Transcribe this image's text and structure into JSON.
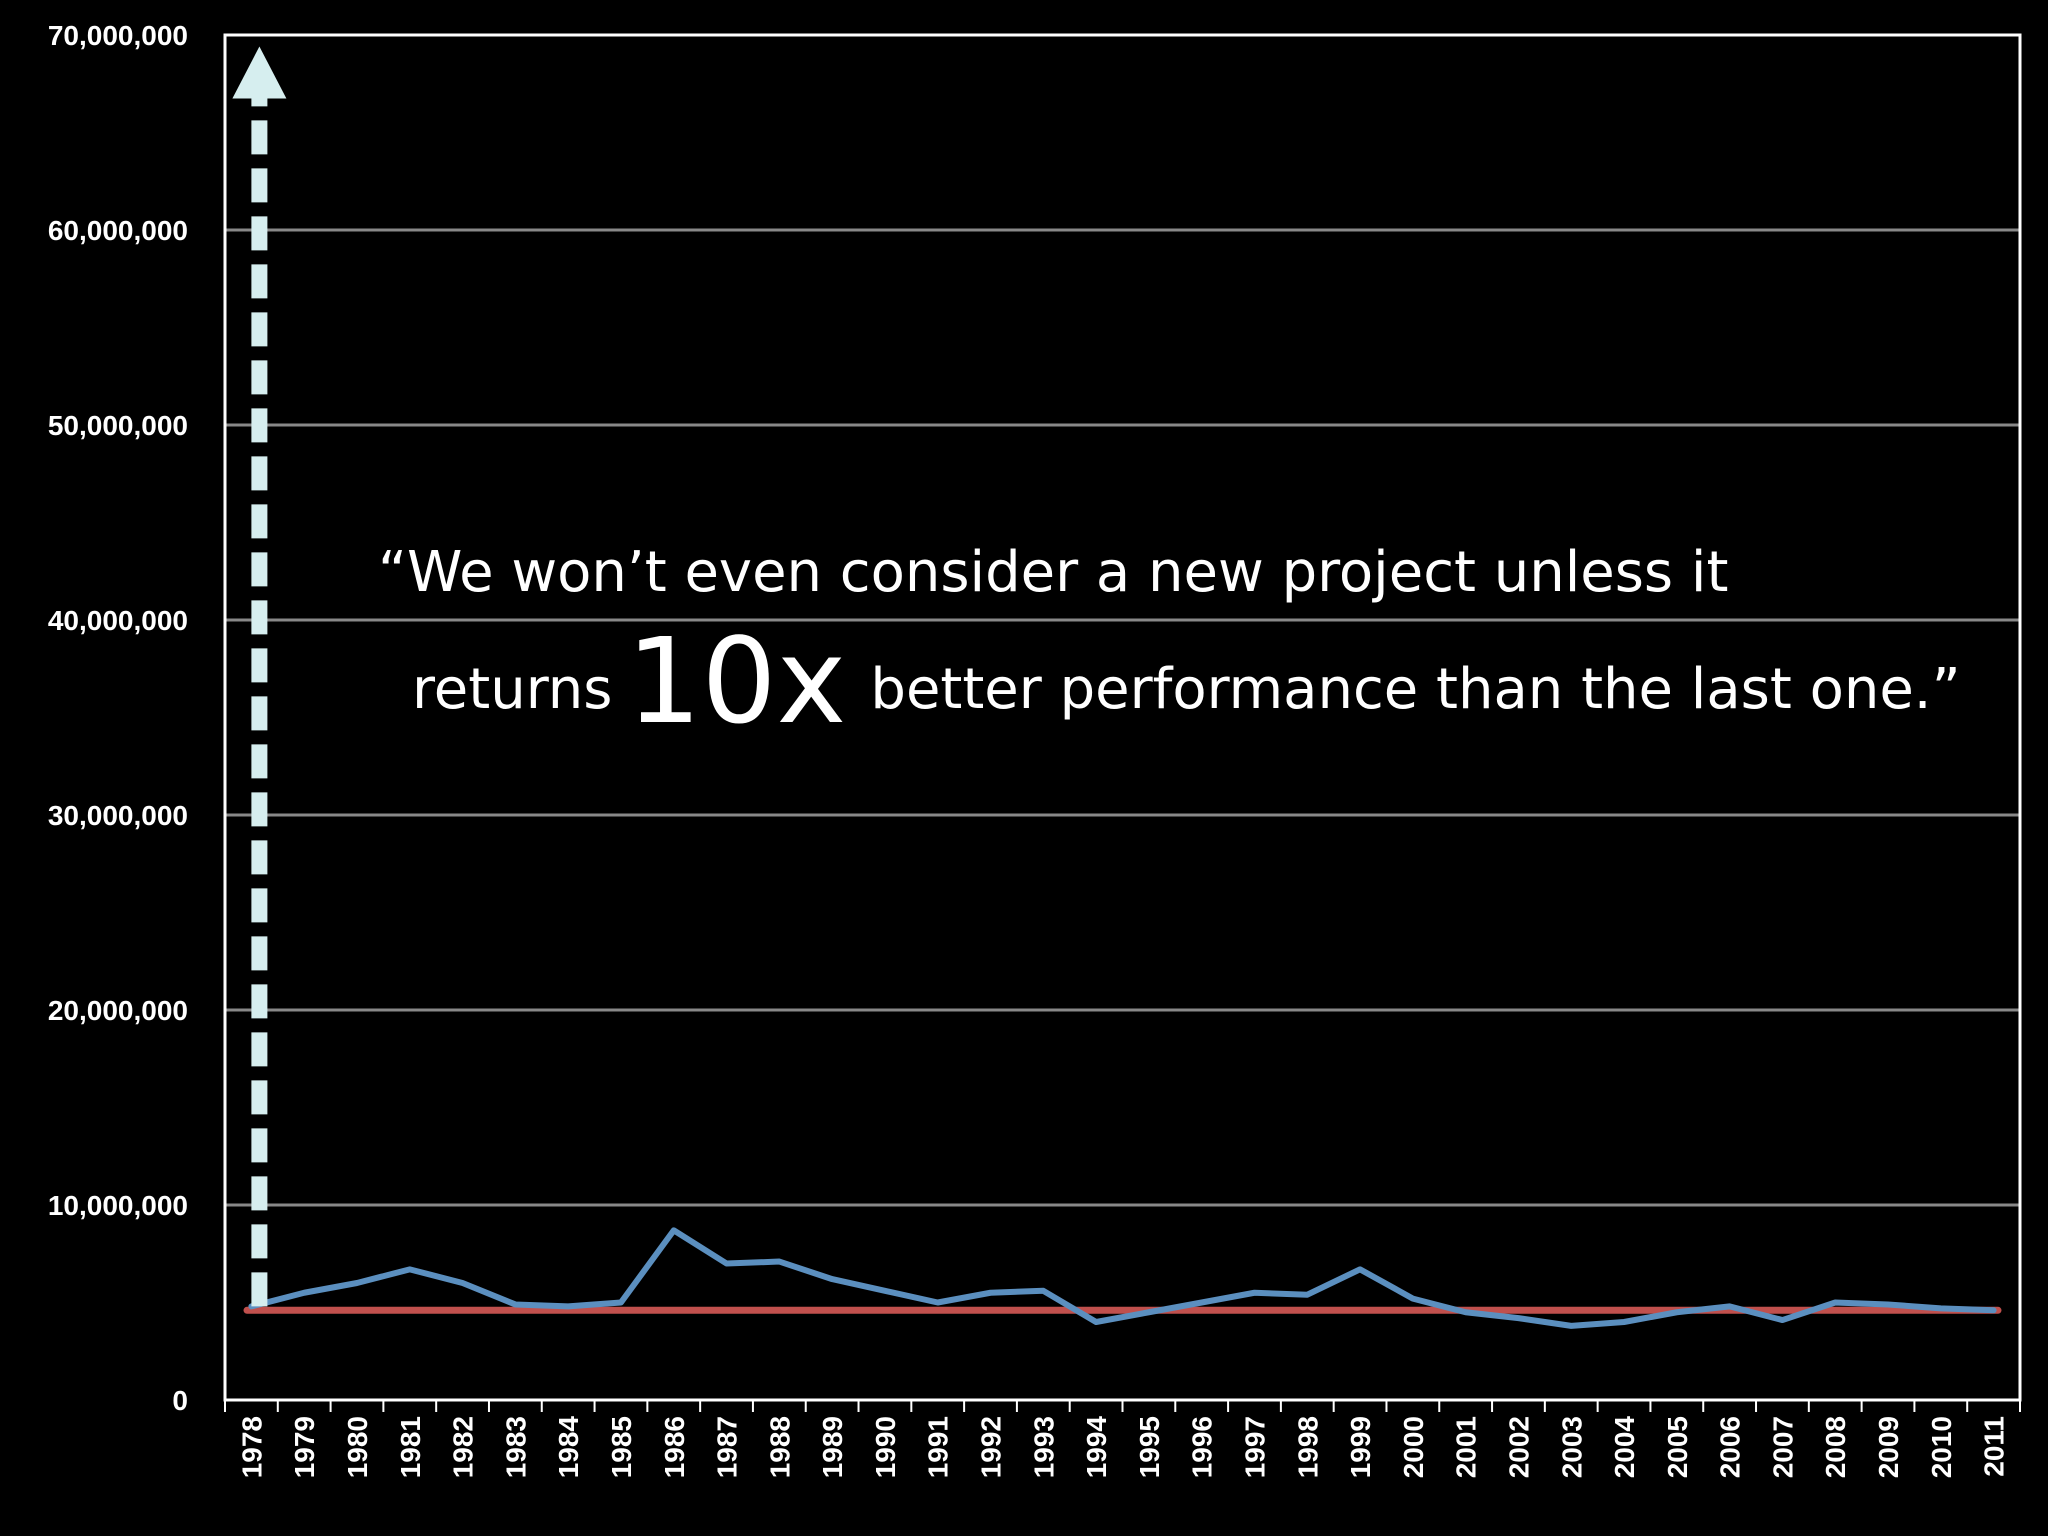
{
  "chart_data": {
    "type": "line",
    "title": "",
    "xlabel": "",
    "ylabel": "",
    "ylim": [
      0,
      70000000
    ],
    "y_ticks": [
      "0",
      "10,000,000",
      "20,000,000",
      "30,000,000",
      "40,000,000",
      "50,000,000",
      "60,000,000",
      "70,000,000"
    ],
    "y_tick_values": [
      0,
      10000000,
      20000000,
      30000000,
      40000000,
      50000000,
      60000000,
      70000000
    ],
    "categories": [
      "1978",
      "1979",
      "1980",
      "1981",
      "1982",
      "1983",
      "1984",
      "1985",
      "1986",
      "1987",
      "1988",
      "1989",
      "1990",
      "1991",
      "1992",
      "1993",
      "1994",
      "1995",
      "1996",
      "1997",
      "1998",
      "1999",
      "2000",
      "2001",
      "2002",
      "2003",
      "2004",
      "2005",
      "2006",
      "2007",
      "2008",
      "2009",
      "2010",
      "2011"
    ],
    "series": [
      {
        "name": "",
        "color": "#5b8fbf",
        "values": [
          4800000,
          5500000,
          6000000,
          6700000,
          6000000,
          4900000,
          4800000,
          5000000,
          8700000,
          7000000,
          7100000,
          6200000,
          5600000,
          5000000,
          5500000,
          5600000,
          4000000,
          4500000,
          5000000,
          5500000,
          5400000,
          6700000,
          5200000,
          4500000,
          4200000,
          3800000,
          4000000,
          4500000,
          4800000,
          4100000,
          5000000,
          4900000,
          4700000,
          4600000
        ]
      },
      {
        "name": "",
        "color": "#c0504d",
        "values": [
          4600000,
          4600000,
          4600000,
          4600000,
          4600000,
          4600000,
          4600000,
          4600000,
          4600000,
          4600000,
          4600000,
          4600000,
          4600000,
          4600000,
          4600000,
          4600000,
          4600000,
          4600000,
          4600000,
          4600000,
          4600000,
          4600000,
          4600000,
          4600000,
          4600000,
          4600000,
          4600000,
          4600000,
          4600000,
          4600000,
          4600000,
          4600000,
          4600000,
          4600000
        ]
      }
    ],
    "annotation_arrow": {
      "style": "dashed",
      "color": "#d6eeef",
      "from_value": 4800000,
      "to_value": 69000000,
      "at_category": "1978"
    },
    "grid": true,
    "legend": "none",
    "background": "#000000",
    "axis_color": "#ffffff",
    "grid_color": "#888888"
  },
  "quote": {
    "line1": "“We won’t even consider a new project unless it",
    "line2_prefix": "returns",
    "line2_big": "10x",
    "line2_suffix": "better performance than the last one.”"
  }
}
